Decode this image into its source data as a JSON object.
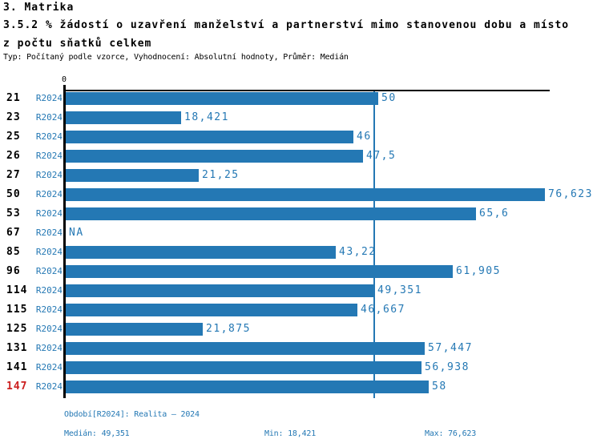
{
  "header": {
    "title1": "3. Matrika",
    "title2": "3.5.2 % žádostí o uzavření manželství a partnerství mimo stanovenou dobu a místo",
    "title3": "z počtu sňatků celkem",
    "subtitle": "Typ: Počítaný podle vzorce, Vyhodnocení: Absolutní hodnoty, Průměr: Medián"
  },
  "chart_data": {
    "type": "bar",
    "orientation": "horizontal",
    "title": "3.5.2 % žádostí o uzavření manželství a partnerství mimo stanovenou dobu a místo z počtu sňatků celkem",
    "series_label": "R2024",
    "axis_zero_label": "0",
    "categories": [
      "21",
      "23",
      "25",
      "26",
      "27",
      "50",
      "53",
      "67",
      "85",
      "96",
      "114",
      "115",
      "125",
      "131",
      "141",
      "147"
    ],
    "values": [
      50,
      18.421,
      46,
      47.5,
      21.25,
      76.623,
      65.6,
      null,
      43.22,
      61.905,
      49.351,
      46.667,
      21.875,
      57.447,
      56.938,
      58
    ],
    "value_labels": [
      "50",
      "18,421",
      "46",
      "47,5",
      "21,25",
      "76,623",
      "65,6",
      "NA",
      "43,22",
      "61,905",
      "49,351",
      "46,667",
      "21,875",
      "57,447",
      "56,938",
      "58"
    ],
    "na_label": "NA",
    "highlighted_category": "147",
    "median": 49.351,
    "min": 18.421,
    "max": 76.623,
    "xlim": [
      0,
      77.5
    ],
    "grid": false,
    "legend_position": "none",
    "colors": {
      "bar": "#2478b4",
      "accent_text": "#2478b4",
      "median_line": "#2478b4",
      "highlight_red": "#cc1f1f"
    }
  },
  "footer": {
    "period": "Období[R2024]: Realita – 2024",
    "median": "Medián: 49,351",
    "min": "Min: 18,421",
    "max": "Max: 76,623"
  }
}
